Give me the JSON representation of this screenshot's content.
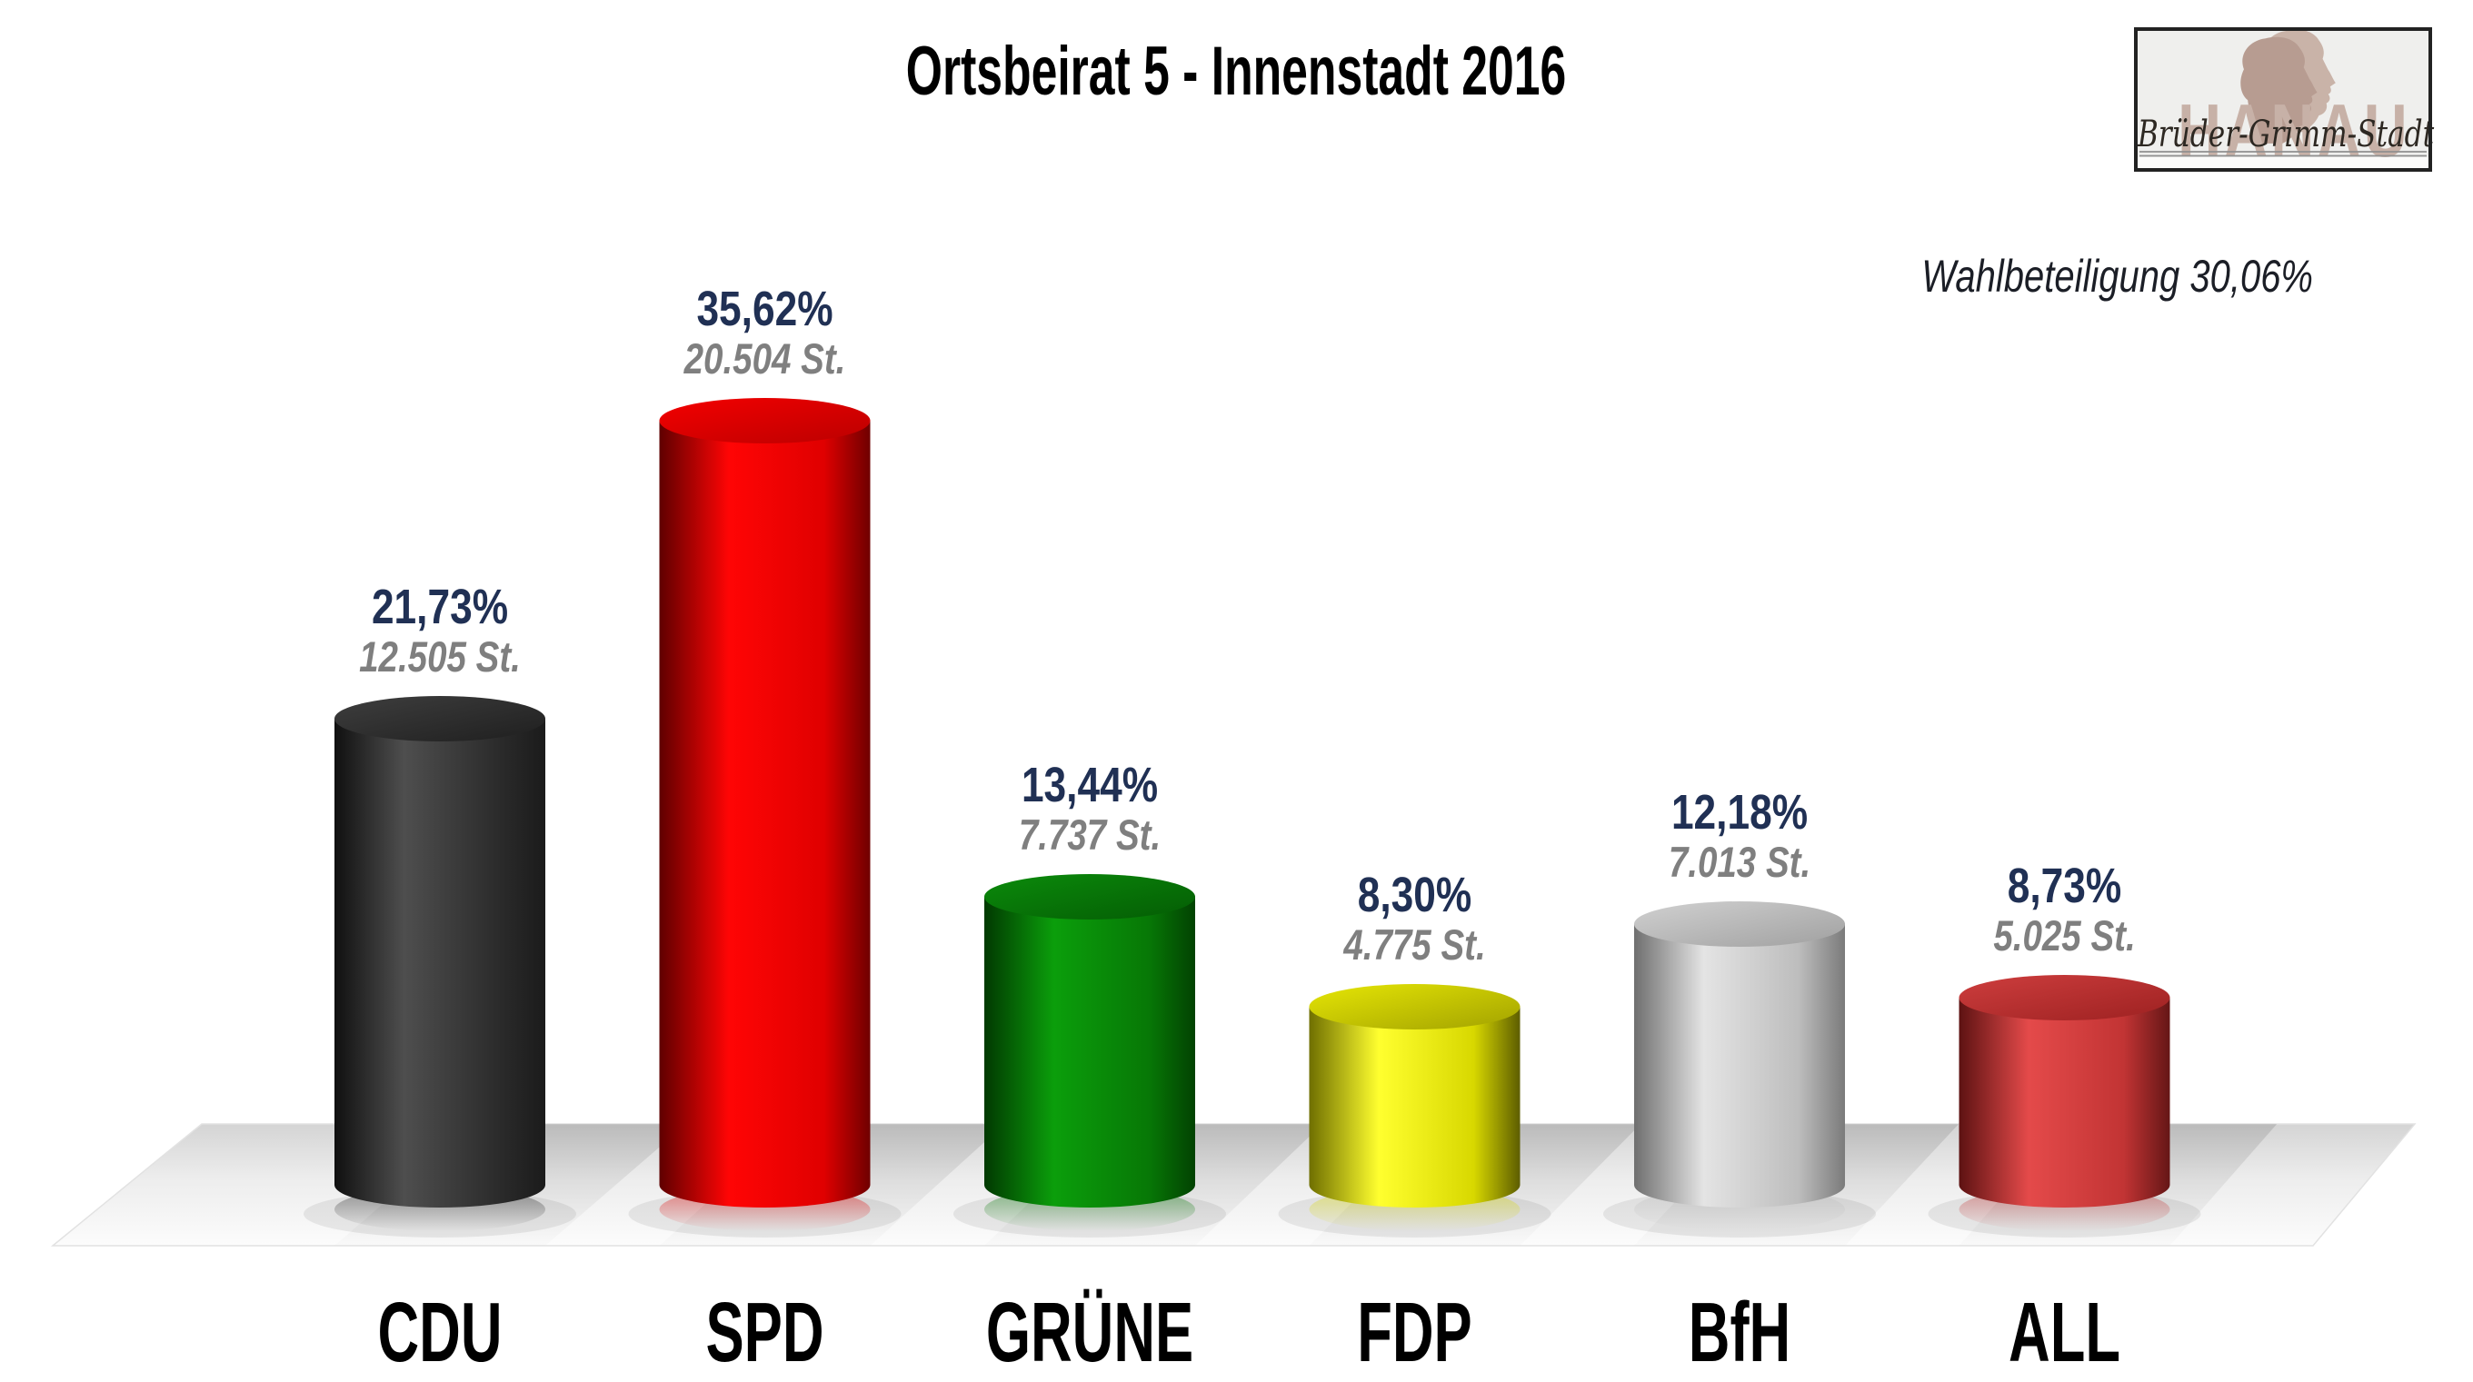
{
  "header": {
    "title": "Ortsbeirat 5 - Innenstadt 2016",
    "turnout": "Wahlbeteiligung 30,06%"
  },
  "logo": {
    "city": "HANAU",
    "tagline": "Brüder-Grimm-Stadt"
  },
  "chart_data": {
    "type": "bar",
    "style": "3d-cylinder",
    "title": "Ortsbeirat 5 - Innenstadt 2016",
    "turnout_percent": 30.06,
    "ylim": [
      0,
      40
    ],
    "grid": false,
    "legend": false,
    "categories": [
      "CDU",
      "SPD",
      "GRÜNE",
      "FDP",
      "BfH",
      "ALL"
    ],
    "values_percent": [
      21.73,
      35.62,
      13.44,
      8.3,
      12.18,
      8.73
    ],
    "votes": [
      12505,
      20504,
      7737,
      4775,
      7013,
      5025
    ],
    "label_colors": {
      "percent": "#203054",
      "votes": "#7F7F7F",
      "category": "#000000"
    },
    "bars": [
      {
        "label": "CDU",
        "percent": 21.73,
        "percent_label": "21,73%",
        "votes": 12505,
        "vote_label": "12.505 St.",
        "color": {
          "base": "#2B2B2B",
          "edge": "#101010",
          "highlight": "#4E4E4E",
          "edge2": "#1B1B1B",
          "top": "#3E3E3E",
          "top2": "#1F1F1F"
        }
      },
      {
        "label": "SPD",
        "percent": 35.62,
        "percent_label": "35,62%",
        "votes": 20504,
        "vote_label": "20.504 St.",
        "color": {
          "base": "#E00000",
          "edge": "#5F0000",
          "highlight": "#FF0505",
          "edge2": "#6F0000",
          "top": "#F40000",
          "top2": "#BB0000"
        }
      },
      {
        "label": "GRÜNE",
        "percent": 13.44,
        "percent_label": "13,44%",
        "votes": 7737,
        "vote_label": "7.737 St.",
        "color": {
          "base": "#077806",
          "edge": "#013901",
          "highlight": "#0B9E0B",
          "edge2": "#024202",
          "top": "#0B8B0B",
          "top2": "#045C04"
        }
      },
      {
        "label": "FDP",
        "percent": 8.3,
        "percent_label": "8,30%",
        "votes": 4775,
        "vote_label": "4.775 St.",
        "color": {
          "base": "#D8D800",
          "edge": "#6F6F00",
          "highlight": "#FFFF2F",
          "edge2": "#5D5D00",
          "top": "#E6E605",
          "top2": "#A2A200"
        }
      },
      {
        "label": "BfH",
        "percent": 12.18,
        "percent_label": "12,18%",
        "votes": 7013,
        "vote_label": "7.013 St.",
        "color": {
          "base": "#BDBDBD",
          "edge": "#6F6F6F",
          "highlight": "#E4E4E4",
          "edge2": "#7B7B7B",
          "top": "#D1D1D1",
          "top2": "#A0A0A0"
        }
      },
      {
        "label": "ALL",
        "percent": 8.73,
        "percent_label": "8,73%",
        "votes": 5025,
        "vote_label": "5.025 St.",
        "color": {
          "base": "#C23434",
          "edge": "#5D1212",
          "highlight": "#E44A4A",
          "edge2": "#651616",
          "top": "#CE3E3E",
          "top2": "#9D2121"
        }
      }
    ]
  }
}
